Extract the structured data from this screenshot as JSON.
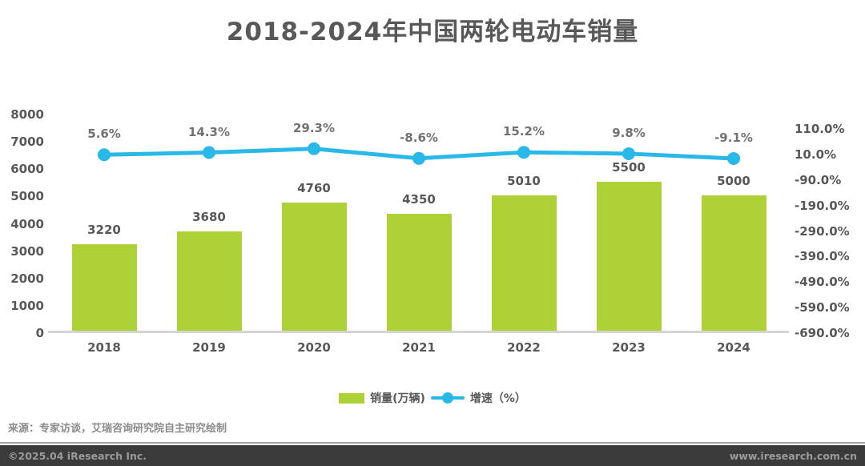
{
  "title": "2018-2024年中国两轮电动车销量",
  "chart_data": {
    "type": "bar",
    "subtype": "bar-line-combo",
    "categories": [
      "2018",
      "2019",
      "2020",
      "2021",
      "2022",
      "2023",
      "2024"
    ],
    "series": [
      {
        "name": "销量(万辆)",
        "type": "bar",
        "color": "#AFD138",
        "values": [
          3220,
          3680,
          4760,
          4350,
          5010,
          5500,
          5000
        ],
        "labels": [
          "3220",
          "3680",
          "4760",
          "4350",
          "5010",
          "5500",
          "5000"
        ]
      },
      {
        "name": "增速（%）",
        "type": "line",
        "color": "#29B8E8",
        "values": [
          5.6,
          14.3,
          29.3,
          -8.6,
          15.2,
          9.8,
          -9.1
        ],
        "labels": [
          "5.6%",
          "14.3%",
          "29.3%",
          "-8.6%",
          "15.2%",
          "9.8%",
          "-9.1%"
        ]
      }
    ],
    "left_axis": {
      "min": 0,
      "max": 8000,
      "ticks": [
        "8000",
        "7000",
        "6000",
        "5000",
        "4000",
        "3000",
        "2000",
        "1000",
        "0"
      ],
      "tick_values": [
        8000,
        7000,
        6000,
        5000,
        4000,
        3000,
        2000,
        1000,
        0
      ]
    },
    "right_axis": {
      "min": -690,
      "max": 110,
      "ticks": [
        "110.0%",
        "10.0%",
        "-90.0%",
        "-190.0%",
        "-290.0%",
        "-390.0%",
        "-490.0%",
        "-590.0%",
        "-690.0%"
      ],
      "tick_values": [
        110,
        10,
        -90,
        -190,
        -290,
        -390,
        -490,
        -590,
        -690
      ]
    },
    "grid": "off",
    "legend_position": "bottom"
  },
  "source_note": "来源：专家访谈，艾瑞咨询研究院自主研究绘制",
  "footer": {
    "copyright": "©2025.04 iResearch Inc.",
    "website": "www.iresearch.com.cn"
  }
}
